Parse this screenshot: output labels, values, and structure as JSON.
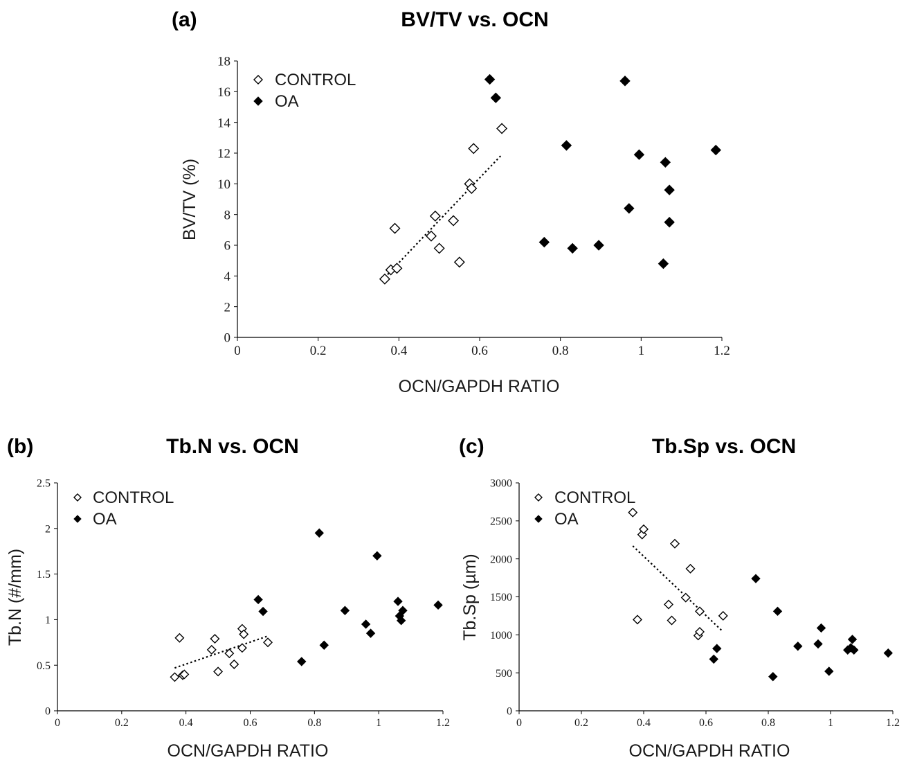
{
  "chart_data": [
    {
      "type": "scatter",
      "panel_label": "(a)",
      "title": "BV/TV vs. OCN",
      "xlabel": "OCN/GAPDH RATIO",
      "ylabel": "BV/TV (%)",
      "xlim": [
        0,
        1.2
      ],
      "ylim": [
        0,
        18
      ],
      "xticks": [
        0,
        0.2,
        0.4,
        0.6,
        0.8,
        1,
        1.2
      ],
      "yticks": [
        0,
        2,
        4,
        6,
        8,
        10,
        12,
        14,
        16,
        18
      ],
      "legend_position": "top-left",
      "series": [
        {
          "name": "CONTROL",
          "marker": "open-diamond",
          "color": "#000000",
          "points": [
            [
              0.365,
              3.8
            ],
            [
              0.38,
              4.4
            ],
            [
              0.395,
              4.5
            ],
            [
              0.39,
              7.1
            ],
            [
              0.48,
              6.6
            ],
            [
              0.49,
              7.9
            ],
            [
              0.5,
              5.8
            ],
            [
              0.535,
              7.6
            ],
            [
              0.55,
              4.9
            ],
            [
              0.575,
              10.0
            ],
            [
              0.58,
              9.7
            ],
            [
              0.585,
              12.3
            ],
            [
              0.655,
              13.6
            ]
          ]
        },
        {
          "name": "OA",
          "marker": "filled-diamond",
          "color": "#000000",
          "points": [
            [
              0.625,
              16.8
            ],
            [
              0.64,
              15.6
            ],
            [
              0.76,
              6.2
            ],
            [
              0.815,
              12.5
            ],
            [
              0.83,
              5.8
            ],
            [
              0.895,
              6.0
            ],
            [
              0.96,
              16.7
            ],
            [
              0.97,
              8.4
            ],
            [
              0.995,
              11.9
            ],
            [
              1.055,
              4.8
            ],
            [
              1.06,
              11.4
            ],
            [
              1.07,
              9.6
            ],
            [
              1.07,
              7.5
            ],
            [
              1.185,
              12.2
            ]
          ]
        }
      ],
      "trendline": {
        "series": "CONTROL",
        "style": "dotted",
        "from": [
          0.365,
          3.9
        ],
        "to": [
          0.655,
          11.9
        ]
      }
    },
    {
      "type": "scatter",
      "panel_label": "(b)",
      "title": "Tb.N vs. OCN",
      "xlabel": "OCN/GAPDH RATIO",
      "ylabel": "Tb.N (#/mm)",
      "xlim": [
        0,
        1.2
      ],
      "ylim": [
        0,
        2.5
      ],
      "xticks": [
        0,
        0.2,
        0.4,
        0.6,
        0.8,
        1,
        1.2
      ],
      "yticks": [
        0,
        0.5,
        1,
        1.5,
        2,
        2.5
      ],
      "legend_position": "top-left",
      "series": [
        {
          "name": "CONTROL",
          "marker": "open-diamond",
          "color": "#000000",
          "points": [
            [
              0.365,
              0.37
            ],
            [
              0.38,
              0.8
            ],
            [
              0.39,
              0.39
            ],
            [
              0.395,
              0.4
            ],
            [
              0.48,
              0.67
            ],
            [
              0.49,
              0.79
            ],
            [
              0.5,
              0.43
            ],
            [
              0.535,
              0.63
            ],
            [
              0.55,
              0.51
            ],
            [
              0.575,
              0.9
            ],
            [
              0.575,
              0.69
            ],
            [
              0.58,
              0.84
            ],
            [
              0.655,
              0.75
            ]
          ]
        },
        {
          "name": "OA",
          "marker": "filled-diamond",
          "color": "#000000",
          "points": [
            [
              0.625,
              1.22
            ],
            [
              0.64,
              1.09
            ],
            [
              0.76,
              0.54
            ],
            [
              0.815,
              1.95
            ],
            [
              0.83,
              0.72
            ],
            [
              0.895,
              1.1
            ],
            [
              0.96,
              0.95
            ],
            [
              0.975,
              0.85
            ],
            [
              0.995,
              1.7
            ],
            [
              1.06,
              1.2
            ],
            [
              1.065,
              1.04
            ],
            [
              1.07,
              0.99
            ],
            [
              1.075,
              1.1
            ],
            [
              1.185,
              1.16
            ]
          ]
        }
      ],
      "trendline": {
        "series": "CONTROL",
        "style": "dotted",
        "from": [
          0.365,
          0.47
        ],
        "to": [
          0.655,
          0.82
        ]
      }
    },
    {
      "type": "scatter",
      "panel_label": "(c)",
      "title": "Tb.Sp vs. OCN",
      "xlabel": "OCN/GAPDH RATIO",
      "ylabel": "Tb.Sp (µm)",
      "xlim": [
        0,
        1.2
      ],
      "ylim": [
        0,
        3000
      ],
      "xticks": [
        0,
        0.2,
        0.4,
        0.6,
        0.8,
        1,
        1.2
      ],
      "yticks": [
        0,
        500,
        1000,
        1500,
        2000,
        2500,
        3000
      ],
      "legend_position": "top-left",
      "series": [
        {
          "name": "CONTROL",
          "marker": "open-diamond",
          "color": "#000000",
          "points": [
            [
              0.365,
              2610
            ],
            [
              0.38,
              1200
            ],
            [
              0.395,
              2320
            ],
            [
              0.4,
              2390
            ],
            [
              0.48,
              1400
            ],
            [
              0.49,
              1190
            ],
            [
              0.5,
              2200
            ],
            [
              0.535,
              1490
            ],
            [
              0.55,
              1870
            ],
            [
              0.575,
              990
            ],
            [
              0.58,
              1040
            ],
            [
              0.58,
              1310
            ],
            [
              0.655,
              1250
            ]
          ]
        },
        {
          "name": "OA",
          "marker": "filled-diamond",
          "color": "#000000",
          "points": [
            [
              0.625,
              680
            ],
            [
              0.635,
              820
            ],
            [
              0.76,
              1740
            ],
            [
              0.815,
              450
            ],
            [
              0.83,
              1310
            ],
            [
              0.895,
              850
            ],
            [
              0.96,
              880
            ],
            [
              0.97,
              1090
            ],
            [
              0.995,
              520
            ],
            [
              1.055,
              800
            ],
            [
              1.065,
              830
            ],
            [
              1.07,
              940
            ],
            [
              1.075,
              800
            ],
            [
              1.185,
              760
            ]
          ]
        }
      ],
      "trendline": {
        "series": "CONTROL",
        "style": "dotted",
        "from": [
          0.365,
          2170
        ],
        "to": [
          0.655,
          1040
        ]
      }
    }
  ]
}
